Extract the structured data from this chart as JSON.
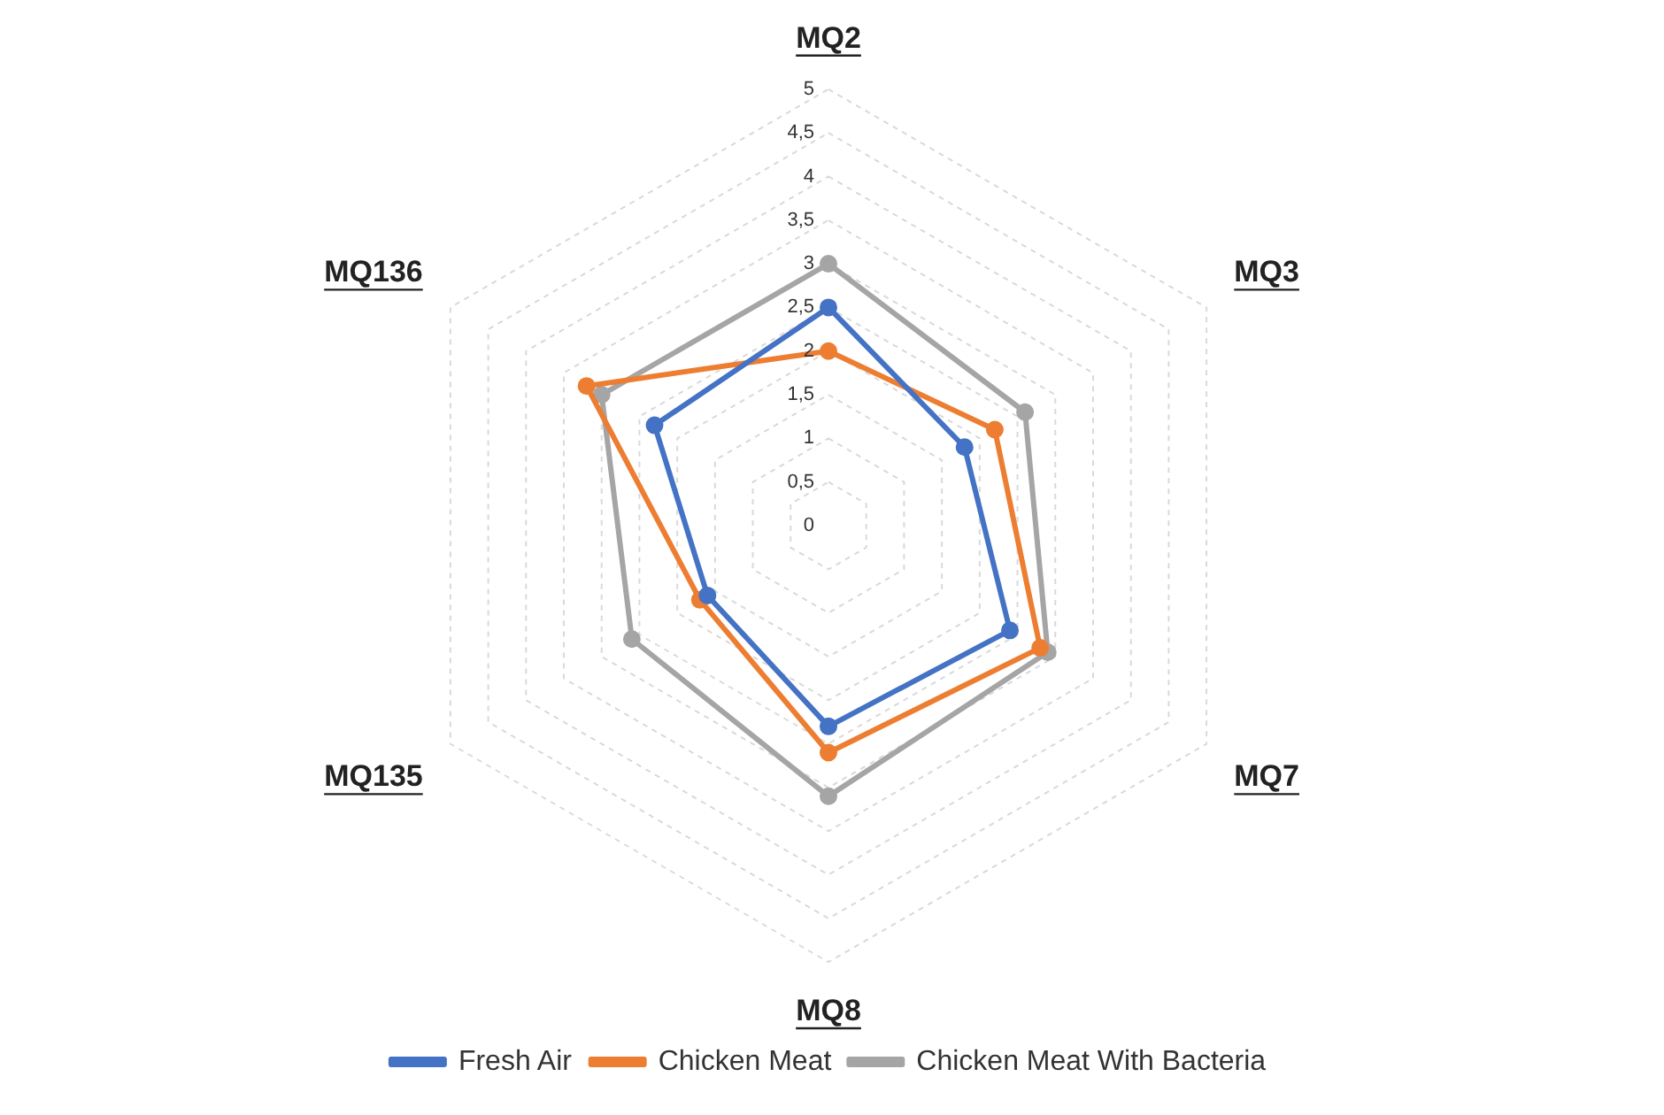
{
  "chart_data": {
    "type": "radar",
    "categories": [
      "MQ2",
      "MQ3",
      "MQ7",
      "MQ8",
      "MQ135",
      "MQ136"
    ],
    "series": [
      {
        "name": "Fresh Air",
        "color": "#4472c4",
        "values": [
          2.5,
          1.8,
          2.4,
          2.3,
          1.6,
          2.3
        ]
      },
      {
        "name": "Chicken Meat",
        "color": "#ed7d31",
        "values": [
          2.0,
          2.2,
          2.8,
          2.6,
          1.7,
          3.2
        ]
      },
      {
        "name": "Chicken Meat With Bacteria",
        "color": "#a5a5a5",
        "values": [
          3.0,
          2.6,
          2.9,
          3.1,
          2.6,
          3.0
        ]
      }
    ],
    "ylim": [
      0,
      5
    ],
    "yticks": [
      0,
      {
        "value": 0.5,
        "label": "0,5"
      },
      1,
      {
        "value": 1.5,
        "label": "1,5"
      },
      2,
      {
        "value": 2.5,
        "label": "2,5"
      },
      3,
      {
        "value": 3.5,
        "label": "3,5"
      },
      4,
      {
        "value": 4.5,
        "label": "4,5"
      },
      5
    ],
    "grid": true,
    "legend": "bottom",
    "marker": "circle"
  }
}
